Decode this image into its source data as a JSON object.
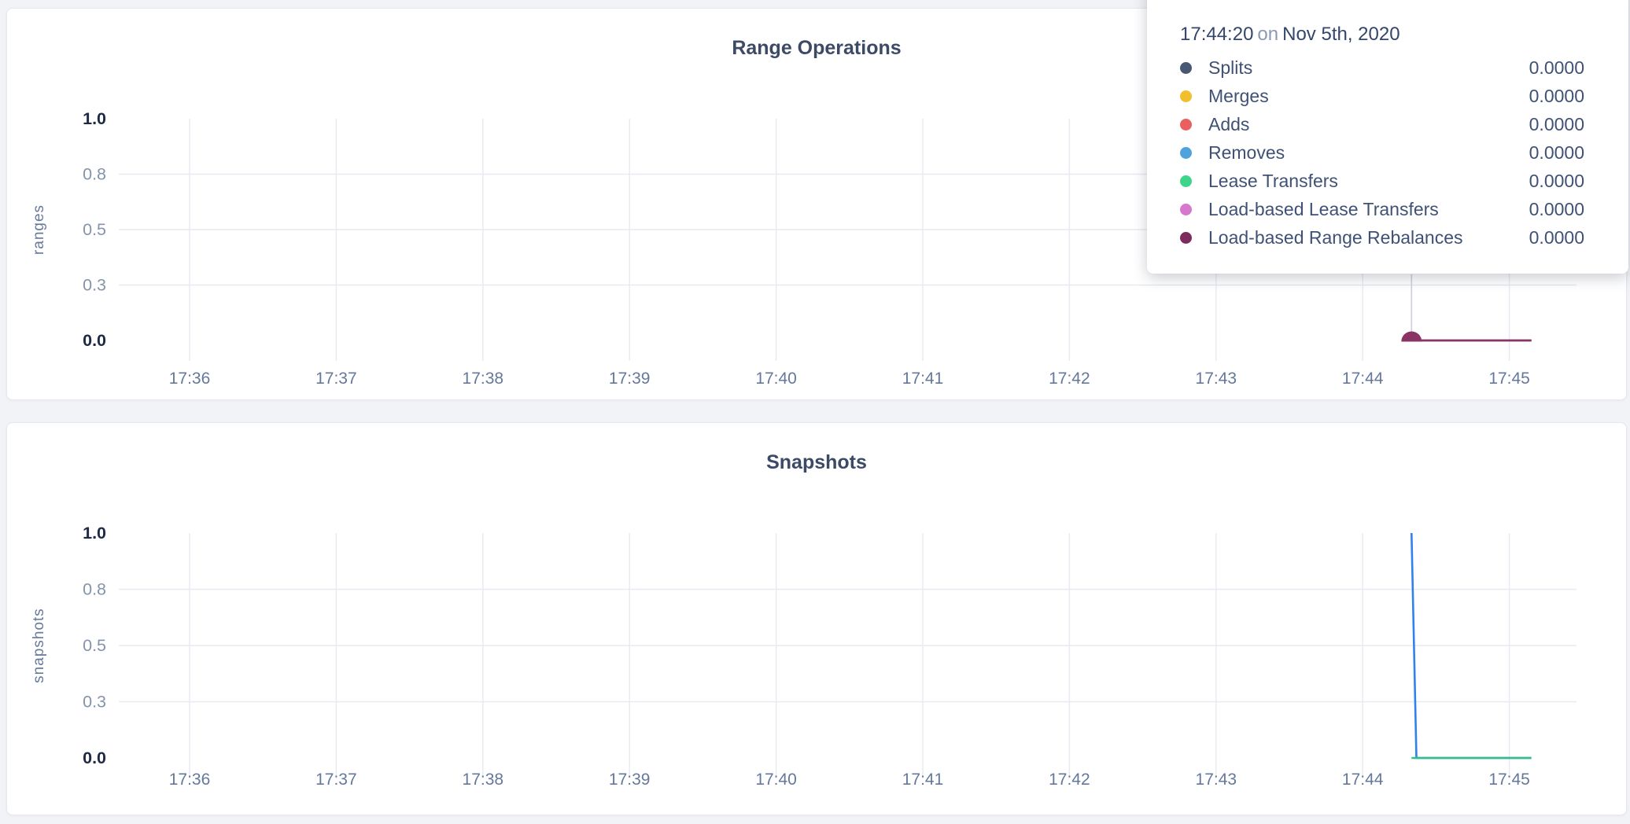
{
  "page": {
    "background_color": "#f2f3f7",
    "card_color": "#ffffff",
    "title_color": "#3c4a66",
    "gridline_color": "#e8eaf1",
    "crosshair_color": "#ccd0d8"
  },
  "tooltip": {
    "time": "17:44:20",
    "connector": "on",
    "date": "Nov 5th, 2020",
    "rows": [
      {
        "label": "Splits",
        "value": "0.0000",
        "color": "#475872"
      },
      {
        "label": "Merges",
        "value": "0.0000",
        "color": "#F2BE2C"
      },
      {
        "label": "Adds",
        "value": "0.0000",
        "color": "#EA5F60"
      },
      {
        "label": "Removes",
        "value": "0.0000",
        "color": "#50A2DC"
      },
      {
        "label": "Lease Transfers",
        "value": "0.0000",
        "color": "#3ED58A"
      },
      {
        "label": "Load-based Lease Transfers",
        "value": "0.0000",
        "color": "#D678CD"
      },
      {
        "label": "Load-based Range Rebalances",
        "value": "0.0000",
        "color": "#7D2B5C"
      }
    ]
  },
  "chart_data": [
    {
      "type": "line",
      "title": "Range Operations",
      "xlabel": "",
      "ylabel": "ranges",
      "ylim": [
        0,
        1
      ],
      "y_tick_labels": [
        "1.0",
        "0.8",
        "0.5",
        "0.3",
        "0.0"
      ],
      "x_tick_labels": [
        "17:36",
        "17:37",
        "17:38",
        "17:39",
        "17:40",
        "17:41",
        "17:42",
        "17:43",
        "17:44",
        "17:45"
      ],
      "grid": true,
      "legend_position": "hover-tooltip",
      "hover": {
        "time": "17:44:20",
        "crosshair": true,
        "marker_series": "Load-based Range Rebalances"
      },
      "series": [
        {
          "name": "Splits",
          "color": "#475872",
          "points": [
            [
              "17:44:20",
              0
            ],
            [
              "17:45:09",
              0
            ]
          ]
        },
        {
          "name": "Merges",
          "color": "#F2BE2C",
          "points": [
            [
              "17:44:20",
              0
            ],
            [
              "17:45:09",
              0
            ]
          ]
        },
        {
          "name": "Adds",
          "color": "#EA5F60",
          "points": [
            [
              "17:44:20",
              0
            ],
            [
              "17:45:09",
              0
            ]
          ]
        },
        {
          "name": "Removes",
          "color": "#50A2DC",
          "points": [
            [
              "17:44:20",
              0
            ],
            [
              "17:45:09",
              0
            ]
          ]
        },
        {
          "name": "Lease Transfers",
          "color": "#3ED58A",
          "points": [
            [
              "17:44:20",
              0
            ],
            [
              "17:45:09",
              0
            ]
          ]
        },
        {
          "name": "Load-based Lease Transfers",
          "color": "#D678CD",
          "points": [
            [
              "17:44:20",
              0
            ],
            [
              "17:45:09",
              0
            ]
          ]
        },
        {
          "name": "Load-based Range Rebalances",
          "color": "#8A3464",
          "points": [
            [
              "17:44:20",
              0
            ],
            [
              "17:45:09",
              0
            ]
          ]
        }
      ]
    },
    {
      "type": "line",
      "title": "Snapshots",
      "xlabel": "",
      "ylabel": "snapshots",
      "ylim": [
        0,
        1
      ],
      "y_tick_labels": [
        "1.0",
        "0.8",
        "0.5",
        "0.3",
        "0.0"
      ],
      "x_tick_labels": [
        "17:36",
        "17:37",
        "17:38",
        "17:39",
        "17:40",
        "17:41",
        "17:42",
        "17:43",
        "17:44",
        "17:45"
      ],
      "grid": true,
      "legend_position": "none-visible",
      "series": [
        {
          "name": "blue",
          "color": "#2F82EE",
          "points": [
            [
              "17:44:20",
              1
            ],
            [
              "17:44:22",
              0
            ],
            [
              "17:45:09",
              0
            ]
          ]
        },
        {
          "name": "green",
          "color": "#31BF87",
          "points": [
            [
              "17:44:20",
              0
            ],
            [
              "17:45:09",
              0
            ]
          ]
        }
      ]
    }
  ]
}
